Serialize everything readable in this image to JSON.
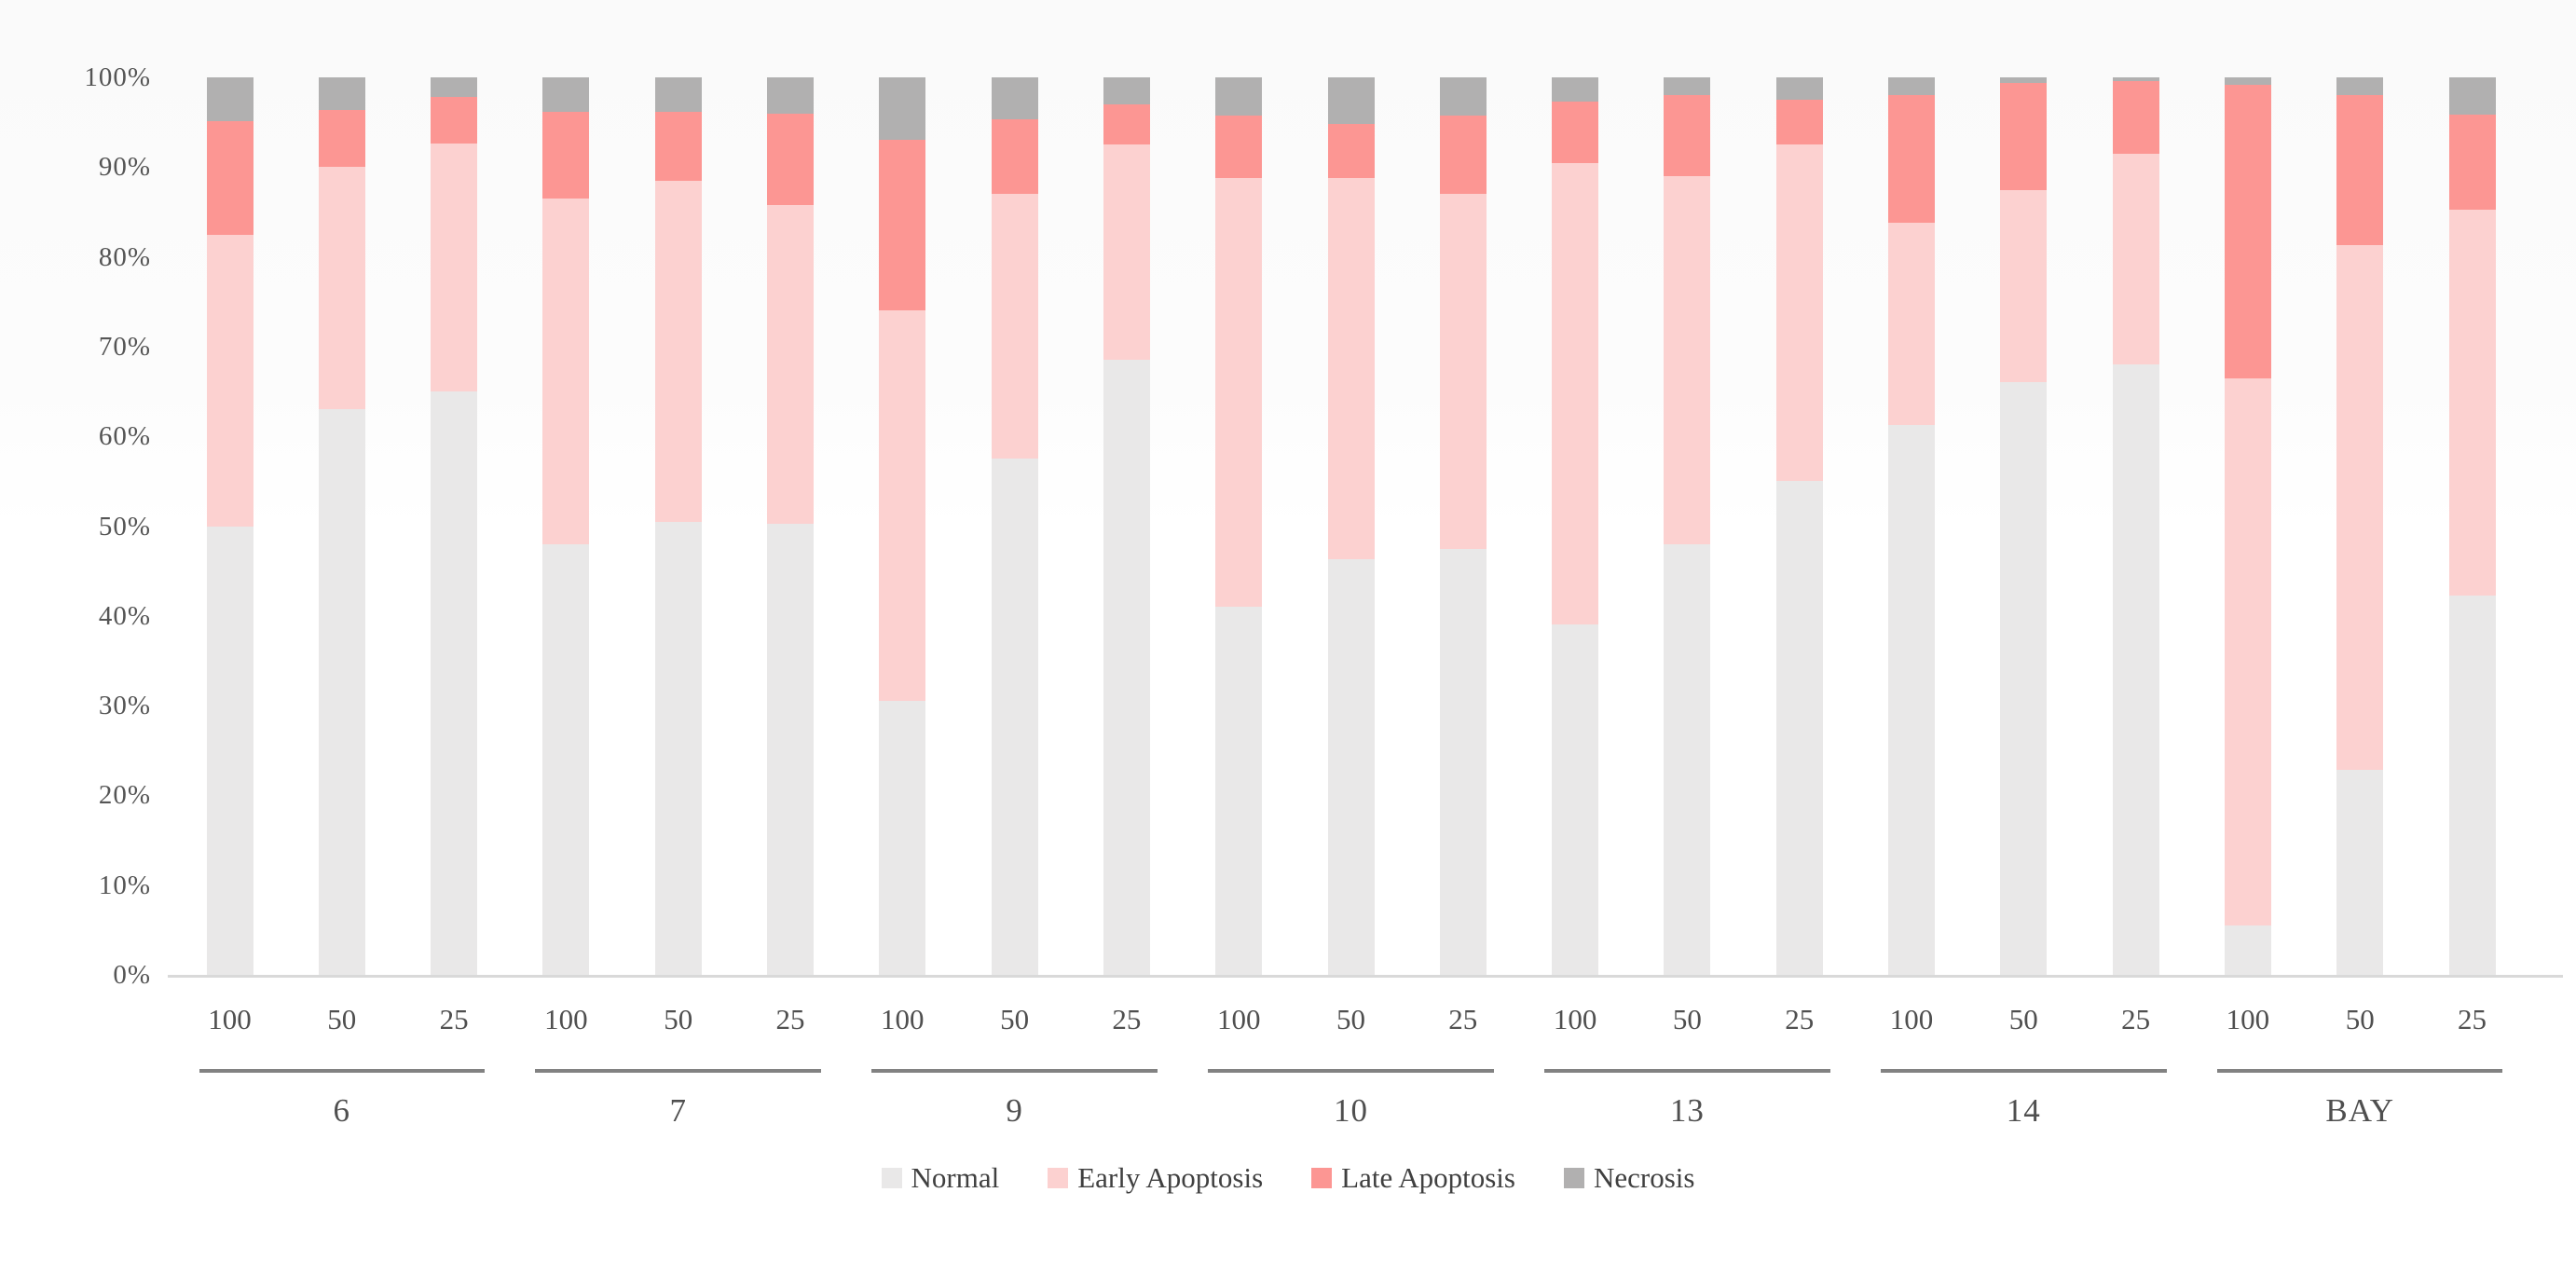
{
  "chart_data": {
    "type": "bar",
    "stacked": true,
    "stack_unit": "percent",
    "title": "",
    "xlabel": "",
    "ylabel": "",
    "ylim": [
      0,
      100
    ],
    "grid": false,
    "legend_position": "bottom-center",
    "y_ticks": [
      "0%",
      "10%",
      "20%",
      "30%",
      "40%",
      "50%",
      "60%",
      "70%",
      "80%",
      "90%",
      "100%"
    ],
    "group_labels": [
      "6",
      "7",
      "9",
      "10",
      "13",
      "14",
      "BAY"
    ],
    "dose_labels": [
      "100",
      "50",
      "25"
    ],
    "series": [
      {
        "name": "Normal",
        "color": "#e9e8e8"
      },
      {
        "name": "Early Apoptosis",
        "color": "#fcd1d0"
      },
      {
        "name": "Late Apoptosis",
        "color": "#fc9693"
      },
      {
        "name": "Necrosis",
        "color": "#b1b0b0"
      }
    ],
    "bars": [
      {
        "group": "6",
        "dose": "100",
        "values": [
          50.0,
          32.5,
          12.6,
          4.9
        ]
      },
      {
        "group": "6",
        "dose": "50",
        "values": [
          63.0,
          27.0,
          6.4,
          3.6
        ]
      },
      {
        "group": "6",
        "dose": "25",
        "values": [
          65.0,
          27.6,
          5.2,
          2.2
        ]
      },
      {
        "group": "7",
        "dose": "100",
        "values": [
          48.0,
          38.5,
          9.7,
          3.8
        ]
      },
      {
        "group": "7",
        "dose": "50",
        "values": [
          50.5,
          38.0,
          7.7,
          3.8
        ]
      },
      {
        "group": "7",
        "dose": "25",
        "values": [
          50.3,
          35.5,
          10.2,
          4.0
        ]
      },
      {
        "group": "9",
        "dose": "100",
        "values": [
          30.5,
          43.5,
          19.0,
          7.0
        ]
      },
      {
        "group": "9",
        "dose": "50",
        "values": [
          57.5,
          29.5,
          8.3,
          4.7
        ]
      },
      {
        "group": "9",
        "dose": "25",
        "values": [
          68.5,
          24.0,
          4.5,
          3.0
        ]
      },
      {
        "group": "10",
        "dose": "100",
        "values": [
          41.0,
          47.8,
          6.9,
          4.3
        ]
      },
      {
        "group": "10",
        "dose": "50",
        "values": [
          46.3,
          42.5,
          6.0,
          5.2
        ]
      },
      {
        "group": "10",
        "dose": "25",
        "values": [
          47.5,
          39.5,
          8.7,
          4.3
        ]
      },
      {
        "group": "13",
        "dose": "100",
        "values": [
          39.0,
          51.5,
          6.8,
          2.7
        ]
      },
      {
        "group": "13",
        "dose": "50",
        "values": [
          48.0,
          41.0,
          9.0,
          2.0
        ]
      },
      {
        "group": "13",
        "dose": "25",
        "values": [
          55.0,
          37.5,
          5.0,
          2.5
        ]
      },
      {
        "group": "14",
        "dose": "100",
        "values": [
          61.3,
          22.5,
          14.2,
          2.0
        ]
      },
      {
        "group": "14",
        "dose": "50",
        "values": [
          66.0,
          21.4,
          12.0,
          0.6
        ]
      },
      {
        "group": "14",
        "dose": "25",
        "values": [
          68.0,
          23.5,
          8.1,
          0.4
        ]
      },
      {
        "group": "BAY",
        "dose": "100",
        "values": [
          5.5,
          61.0,
          32.7,
          0.8
        ]
      },
      {
        "group": "BAY",
        "dose": "50",
        "values": [
          22.8,
          58.5,
          16.7,
          2.0
        ]
      },
      {
        "group": "BAY",
        "dose": "25",
        "values": [
          42.3,
          43.0,
          10.5,
          4.2
        ]
      }
    ]
  },
  "colors": {
    "axis_label_text": "#555555",
    "tick_label_text": "#4f4f4f",
    "group_label_text": "#4f4f4f",
    "group_separator_line": "#828282",
    "baseline": "#d9d9d9",
    "legend_text": "#404040",
    "background": "#ffffff"
  }
}
